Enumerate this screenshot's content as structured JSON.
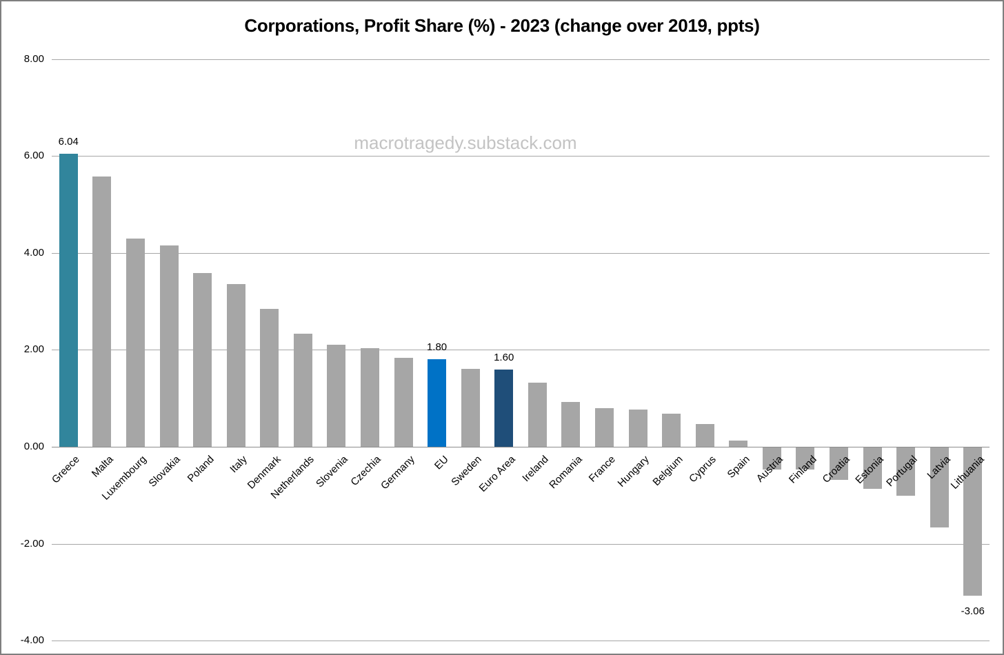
{
  "title": "Corporations, Profit Share (%) - 2023 (change over 2019, ppts)",
  "watermark": "macrotragedy.substack.com",
  "colors": {
    "default_bar": "#a6a6a6",
    "teal_highlight": "#31859c",
    "blue_highlight": "#0072c6",
    "navy_highlight": "#1f4e79",
    "gridline": "#a6a6a6",
    "frame_border": "#7f7f7f",
    "watermark_text": "#c3c3c3",
    "label_text": "#000000"
  },
  "chart_data": {
    "type": "bar",
    "title": "Corporations, Profit Share (%) - 2023 (change over 2019, ppts)",
    "xlabel": "",
    "ylabel": "",
    "ylim": [
      -4,
      8
    ],
    "grid": true,
    "legend": "none",
    "categories": [
      "Greece",
      "Malta",
      "Luxembourg",
      "Slovakia",
      "Poland",
      "Italy",
      "Denmark",
      "Netherlands",
      "Slovenia",
      "Czechia",
      "Germany",
      "EU",
      "Sweden",
      "Euro Area",
      "Ireland",
      "Romania",
      "France",
      "Hungary",
      "Belgium",
      "Cyprus",
      "Spain",
      "Austria",
      "Finland",
      "Croatia",
      "Estonia",
      "Portugal",
      "Latvia",
      "Lithuania"
    ],
    "values": [
      6.04,
      5.58,
      4.3,
      4.15,
      3.58,
      3.36,
      2.85,
      2.33,
      2.1,
      2.04,
      1.83,
      1.8,
      1.61,
      1.6,
      1.33,
      0.93,
      0.8,
      0.77,
      0.68,
      0.47,
      0.13,
      -0.45,
      -0.46,
      -0.67,
      -0.85,
      -1.0,
      -1.65,
      -3.06
    ],
    "bar_colors": [
      "#31859c",
      "#a6a6a6",
      "#a6a6a6",
      "#a6a6a6",
      "#a6a6a6",
      "#a6a6a6",
      "#a6a6a6",
      "#a6a6a6",
      "#a6a6a6",
      "#a6a6a6",
      "#a6a6a6",
      "#0072c6",
      "#a6a6a6",
      "#1f4e79",
      "#a6a6a6",
      "#a6a6a6",
      "#a6a6a6",
      "#a6a6a6",
      "#a6a6a6",
      "#a6a6a6",
      "#a6a6a6",
      "#a6a6a6",
      "#a6a6a6",
      "#a6a6a6",
      "#a6a6a6",
      "#a6a6a6",
      "#a6a6a6",
      "#a6a6a6"
    ],
    "data_labels": [
      "6.04",
      null,
      null,
      null,
      null,
      null,
      null,
      null,
      null,
      null,
      null,
      "1.80",
      null,
      "1.60",
      null,
      null,
      null,
      null,
      null,
      null,
      null,
      null,
      null,
      null,
      null,
      null,
      null,
      "-3.06"
    ],
    "y_ticks": [
      {
        "value": 8,
        "label": "8.00"
      },
      {
        "value": 6,
        "label": "6.00"
      },
      {
        "value": 4,
        "label": "4.00"
      },
      {
        "value": 2,
        "label": "2.00"
      },
      {
        "value": 0,
        "label": "0.00"
      },
      {
        "value": -2,
        "label": "-2.00"
      },
      {
        "value": -4,
        "label": "-4.00"
      }
    ]
  }
}
